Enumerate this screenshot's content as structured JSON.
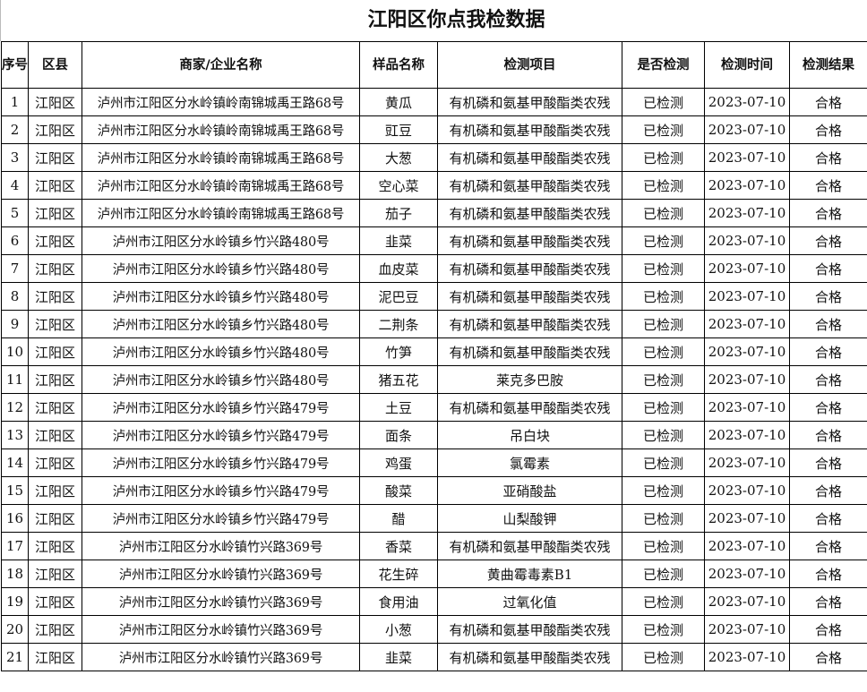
{
  "title": "江阳区你点我检数据",
  "headers": [
    "序号",
    "区县",
    "商家/企业名称",
    "样品名称",
    "检测项目",
    "是否检测",
    "检测时间",
    "检测结果"
  ],
  "rows": [
    [
      "1",
      "江阳区",
      "泸州市江阳区分水岭镇岭南锦城禹王路68号",
      "黄瓜",
      "有机磷和氨基甲酸酯类农残",
      "已检测",
      "2023-07-10",
      "合格"
    ],
    [
      "2",
      "江阳区",
      "泸州市江阳区分水岭镇岭南锦城禹王路68号",
      "豇豆",
      "有机磷和氨基甲酸酯类农残",
      "已检测",
      "2023-07-10",
      "合格"
    ],
    [
      "3",
      "江阳区",
      "泸州市江阳区分水岭镇岭南锦城禹王路68号",
      "大葱",
      "有机磷和氨基甲酸酯类农残",
      "已检测",
      "2023-07-10",
      "合格"
    ],
    [
      "4",
      "江阳区",
      "泸州市江阳区分水岭镇岭南锦城禹王路68号",
      "空心菜",
      "有机磷和氨基甲酸酯类农残",
      "已检测",
      "2023-07-10",
      "合格"
    ],
    [
      "5",
      "江阳区",
      "泸州市江阳区分水岭镇岭南锦城禹王路68号",
      "茄子",
      "有机磷和氨基甲酸酯类农残",
      "已检测",
      "2023-07-10",
      "合格"
    ],
    [
      "6",
      "江阳区",
      "泸州市江阳区分水岭镇乡竹兴路480号",
      "韭菜",
      "有机磷和氨基甲酸酯类农残",
      "已检测",
      "2023-07-10",
      "合格"
    ],
    [
      "7",
      "江阳区",
      "泸州市江阳区分水岭镇乡竹兴路480号",
      "血皮菜",
      "有机磷和氨基甲酸酯类农残",
      "已检测",
      "2023-07-10",
      "合格"
    ],
    [
      "8",
      "江阳区",
      "泸州市江阳区分水岭镇乡竹兴路480号",
      "泥巴豆",
      "有机磷和氨基甲酸酯类农残",
      "已检测",
      "2023-07-10",
      "合格"
    ],
    [
      "9",
      "江阳区",
      "泸州市江阳区分水岭镇乡竹兴路480号",
      "二荆条",
      "有机磷和氨基甲酸酯类农残",
      "已检测",
      "2023-07-10",
      "合格"
    ],
    [
      "10",
      "江阳区",
      "泸州市江阳区分水岭镇乡竹兴路480号",
      "竹笋",
      "有机磷和氨基甲酸酯类农残",
      "已检测",
      "2023-07-10",
      "合格"
    ],
    [
      "11",
      "江阳区",
      "泸州市江阳区分水岭镇乡竹兴路480号",
      "猪五花",
      "莱克多巴胺",
      "已检测",
      "2023-07-10",
      "合格"
    ],
    [
      "12",
      "江阳区",
      "泸州市江阳区分水岭镇乡竹兴路479号",
      "土豆",
      "有机磷和氨基甲酸酯类农残",
      "已检测",
      "2023-07-10",
      "合格"
    ],
    [
      "13",
      "江阳区",
      "泸州市江阳区分水岭镇乡竹兴路479号",
      "面条",
      "吊白块",
      "已检测",
      "2023-07-10",
      "合格"
    ],
    [
      "14",
      "江阳区",
      "泸州市江阳区分水岭镇乡竹兴路479号",
      "鸡蛋",
      "氯霉素",
      "已检测",
      "2023-07-10",
      "合格"
    ],
    [
      "15",
      "江阳区",
      "泸州市江阳区分水岭镇乡竹兴路479号",
      "酸菜",
      "亚硝酸盐",
      "已检测",
      "2023-07-10",
      "合格"
    ],
    [
      "16",
      "江阳区",
      "泸州市江阳区分水岭镇乡竹兴路479号",
      "醋",
      "山梨酸钾",
      "已检测",
      "2023-07-10",
      "合格"
    ],
    [
      "17",
      "江阳区",
      "泸州市江阳区分水岭镇竹兴路369号",
      "香菜",
      "有机磷和氨基甲酸酯类农残",
      "已检测",
      "2023-07-10",
      "合格"
    ],
    [
      "18",
      "江阳区",
      "泸州市江阳区分水岭镇竹兴路369号",
      "花生碎",
      "黄曲霉毒素B1",
      "已检测",
      "2023-07-10",
      "合格"
    ],
    [
      "19",
      "江阳区",
      "泸州市江阳区分水岭镇竹兴路369号",
      "食用油",
      "过氧化值",
      "已检测",
      "2023-07-10",
      "合格"
    ],
    [
      "20",
      "江阳区",
      "泸州市江阳区分水岭镇竹兴路369号",
      "小葱",
      "有机磷和氨基甲酸酯类农残",
      "已检测",
      "2023-07-10",
      "合格"
    ],
    [
      "21",
      "江阳区",
      "泸州市江阳区分水岭镇竹兴路369号",
      "韭菜",
      "有机磷和氨基甲酸酯类农残",
      "已检测",
      "2023-07-10",
      "合格"
    ]
  ]
}
